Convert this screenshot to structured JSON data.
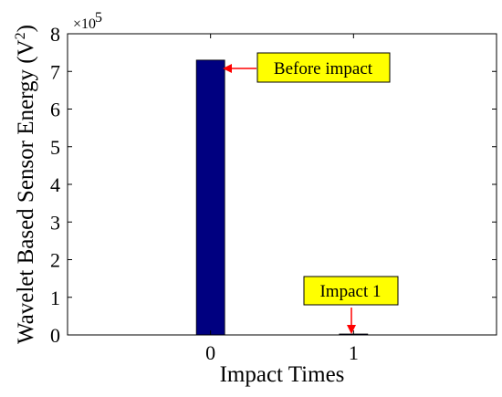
{
  "chart_data": {
    "type": "bar",
    "categories": [
      "0",
      "1"
    ],
    "values": [
      730000,
      1500
    ],
    "x_ticks": [
      "0",
      "1"
    ],
    "xlim": [
      -1,
      2
    ],
    "ylim": [
      0,
      800000
    ],
    "y_ticks": [
      "0",
      "1",
      "2",
      "3",
      "4",
      "5",
      "6",
      "7",
      "8"
    ],
    "y_scale_base": "×10",
    "y_scale_exponent": "5",
    "xlabel": "Impact Times",
    "ylabel_main": "Wavelet Based Sensor Energy (V",
    "ylabel_sup": "2",
    "ylabel_end": ")",
    "bar_color": "#000080",
    "annotation_bg": "#ffff00",
    "arrow_color": "#ff0000",
    "annotations": [
      {
        "text": "Before impact",
        "target_index": 0
      },
      {
        "text": "Impact 1",
        "target_index": 1
      }
    ],
    "grid": false
  }
}
